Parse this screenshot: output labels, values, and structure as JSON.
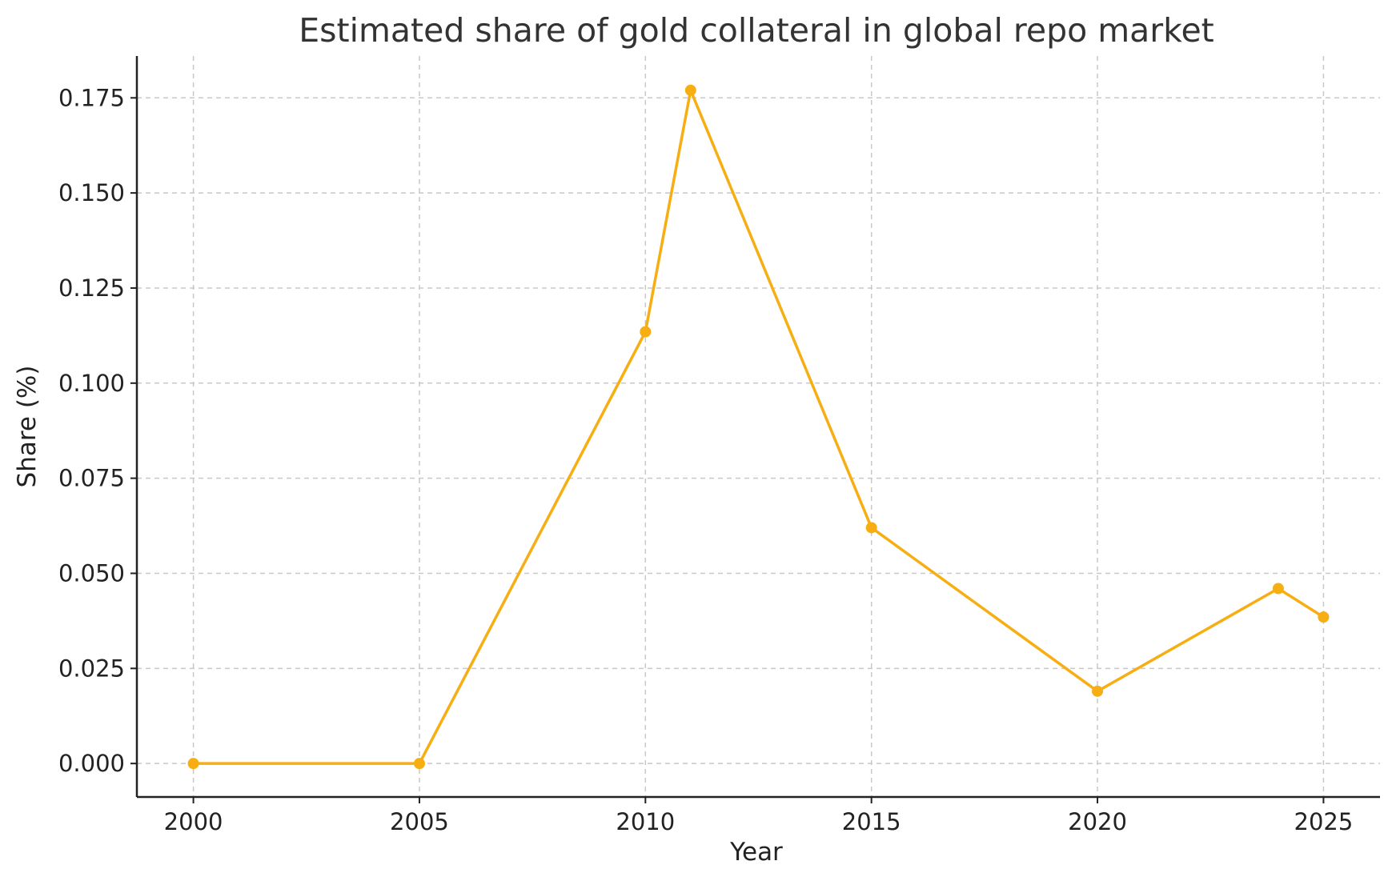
{
  "chart_data": {
    "type": "line",
    "title": "Estimated share of gold collateral in global repo market",
    "xlabel": "Year",
    "ylabel": "Share (%)",
    "x": [
      2000,
      2005,
      2010,
      2011,
      2015,
      2020,
      2024,
      2025
    ],
    "series": [
      {
        "values": [
          0.0,
          0.0,
          0.1135,
          0.177,
          0.062,
          0.019,
          0.046,
          0.0385
        ]
      }
    ],
    "xlim": [
      1998.75,
      2026.25
    ],
    "ylim": [
      -0.0088,
      0.186
    ],
    "xticks": [
      2000,
      2005,
      2010,
      2015,
      2020,
      2025
    ],
    "yticks": [
      0.0,
      0.025,
      0.05,
      0.075,
      0.1,
      0.125,
      0.15,
      0.175
    ],
    "ytick_labels": [
      "0.000",
      "0.025",
      "0.050",
      "0.075",
      "0.100",
      "0.125",
      "0.150",
      "0.175"
    ],
    "grid": true,
    "legend": "none",
    "colors": {
      "line": "#F6AE13",
      "grid": "#c8c8c8",
      "axis": "#222222",
      "title": "#333333"
    }
  }
}
